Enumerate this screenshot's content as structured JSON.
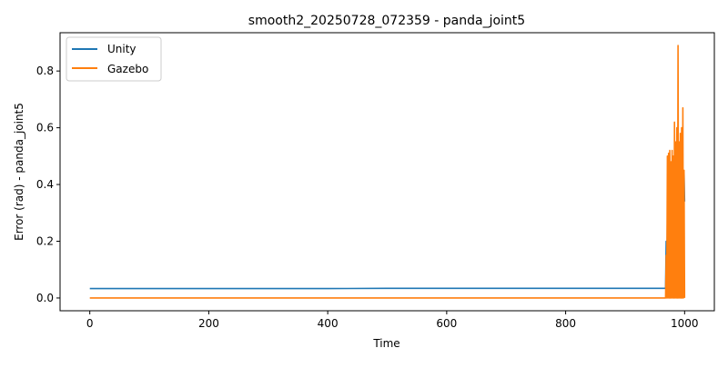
{
  "chart_data": {
    "type": "line",
    "title": "smooth2_20250728_072359 - panda_joint5",
    "xlabel": "Time",
    "ylabel": "Error (rad) - panda_joint5",
    "xlim": [
      -50,
      1050
    ],
    "ylim": [
      -0.045,
      0.935
    ],
    "xticks": [
      0,
      200,
      400,
      600,
      800,
      1000
    ],
    "yticks": [
      0.0,
      0.2,
      0.4,
      0.6,
      0.8
    ],
    "grid": false,
    "legend_position": "top-left",
    "series": [
      {
        "name": "Unity",
        "color": "#1f77b4",
        "x": [
          0,
          100,
          200,
          300,
          400,
          500,
          600,
          700,
          800,
          900,
          968,
          969,
          970,
          971,
          972,
          973,
          974,
          975,
          976,
          977,
          978,
          979,
          980,
          981,
          982,
          983,
          984,
          985,
          986,
          987,
          988,
          989,
          990,
          991,
          992,
          993,
          994,
          995,
          996,
          997,
          998,
          999,
          1000
        ],
        "y": [
          0.033,
          0.033,
          0.033,
          0.033,
          0.033,
          0.034,
          0.034,
          0.034,
          0.034,
          0.034,
          0.034,
          0.2,
          0.02,
          0.3,
          0.03,
          0.4,
          0.04,
          0.32,
          0.05,
          0.42,
          0.03,
          0.28,
          0.05,
          0.38,
          0.04,
          0.3,
          0.06,
          0.42,
          0.03,
          0.36,
          0.05,
          0.4,
          0.04,
          0.33,
          0.06,
          0.39,
          0.05,
          0.35,
          0.06,
          0.41,
          0.05,
          0.44,
          0.34
        ]
      },
      {
        "name": "Gazebo",
        "color": "#ff7f0e",
        "x": [
          0,
          100,
          200,
          300,
          400,
          500,
          600,
          700,
          800,
          900,
          968,
          969,
          970,
          971,
          972,
          973,
          974,
          975,
          976,
          977,
          978,
          979,
          980,
          981,
          982,
          983,
          984,
          985,
          986,
          987,
          988,
          989,
          990,
          991,
          992,
          993,
          994,
          995,
          996,
          997,
          998,
          999,
          1000
        ],
        "y": [
          0.0,
          0.0,
          0.0,
          0.0,
          0.0,
          0.0,
          0.0,
          0.0,
          0.0,
          0.0,
          0.0,
          0.15,
          0.0,
          0.5,
          0.0,
          0.51,
          0.0,
          0.52,
          0.0,
          0.48,
          0.0,
          0.52,
          0.0,
          0.5,
          0.0,
          0.62,
          0.0,
          0.55,
          0.0,
          0.6,
          0.0,
          0.89,
          0.0,
          0.55,
          0.0,
          0.58,
          0.0,
          0.6,
          0.0,
          0.67,
          0.0,
          0.45,
          0.0
        ]
      }
    ]
  }
}
